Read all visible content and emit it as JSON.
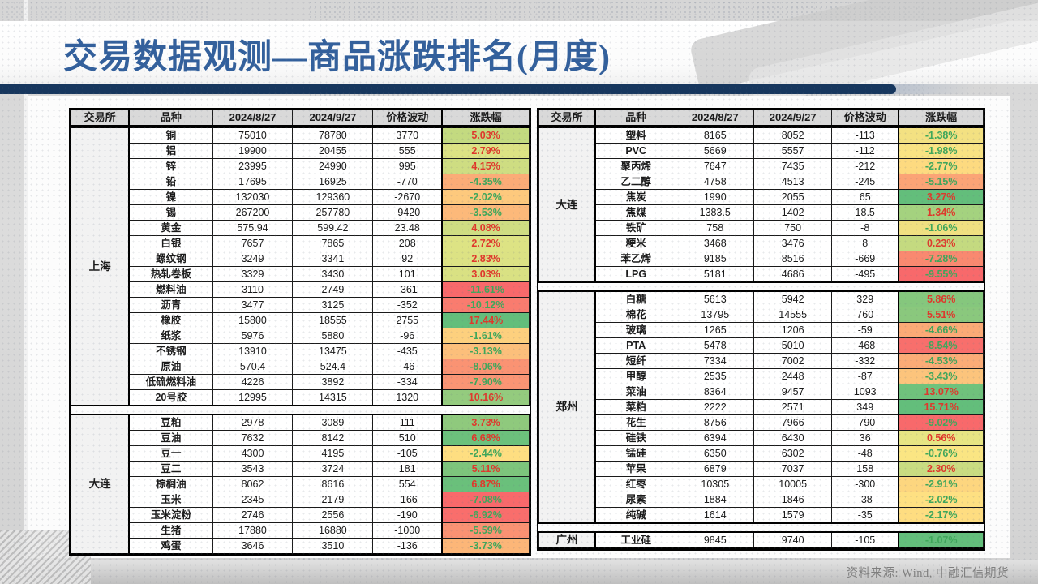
{
  "title": "交易数据观测—商品涨跌排名(月度)",
  "source_note": "资料来源: Wind, 中融汇信期货",
  "columns": [
    "交易所",
    "品种",
    "2024/8/27",
    "2024/9/27",
    "价格波动",
    "涨跌幅"
  ],
  "colors": {
    "title_text": "#33609c",
    "title_bar": "#17375e",
    "positive_text": "#df382c",
    "negative_text": "#3fa75b",
    "header_bg": "#d9d9d9",
    "exchange_bg": "#f2f2f2"
  },
  "tables": [
    {
      "name": "left",
      "blocks": [
        {
          "exchange": "上海",
          "rows": [
            {
              "name": "铜",
              "v0827": "75010",
              "v0927": "78780",
              "change": "3770",
              "pct": "5.03%",
              "pct_bg": "#c3da80"
            },
            {
              "name": "铝",
              "v0827": "19900",
              "v0927": "20455",
              "change": "555",
              "pct": "2.79%",
              "pct_bg": "#dce284"
            },
            {
              "name": "锌",
              "v0827": "23995",
              "v0927": "24990",
              "change": "995",
              "pct": "4.15%",
              "pct_bg": "#cedd82"
            },
            {
              "name": "铅",
              "v0827": "17695",
              "v0927": "16925",
              "change": "-770",
              "pct": "-4.35%",
              "pct_bg": "#fbac77"
            },
            {
              "name": "镍",
              "v0827": "132030",
              "v0927": "129360",
              "change": "-2670",
              "pct": "-2.02%",
              "pct_bg": "#fdc97d"
            },
            {
              "name": "锡",
              "v0827": "267200",
              "v0927": "257780",
              "change": "-9420",
              "pct": "-3.53%",
              "pct_bg": "#fcb97a"
            },
            {
              "name": "黄金",
              "v0827": "575.94",
              "v0927": "599.42",
              "change": "23.48",
              "pct": "4.08%",
              "pct_bg": "#cfdd82"
            },
            {
              "name": "白银",
              "v0827": "7657",
              "v0927": "7865",
              "change": "208",
              "pct": "2.72%",
              "pct_bg": "#dde384"
            },
            {
              "name": "螺纹钢",
              "v0827": "3249",
              "v0927": "3341",
              "change": "92",
              "pct": "2.83%",
              "pct_bg": "#dce284"
            },
            {
              "name": "热轧卷板",
              "v0827": "3329",
              "v0927": "3430",
              "change": "101",
              "pct": "3.03%",
              "pct_bg": "#d9e183"
            },
            {
              "name": "燃料油",
              "v0827": "3110",
              "v0927": "2749",
              "change": "-361",
              "pct": "-11.61%",
              "pct_bg": "#f8696b"
            },
            {
              "name": "沥青",
              "v0827": "3477",
              "v0927": "3125",
              "change": "-352",
              "pct": "-10.12%",
              "pct_bg": "#f97c6f"
            },
            {
              "name": "橡胶",
              "v0827": "15800",
              "v0927": "18555",
              "change": "2755",
              "pct": "17.44%",
              "pct_bg": "#63be7b"
            },
            {
              "name": "纸浆",
              "v0827": "5976",
              "v0927": "5880",
              "change": "-96",
              "pct": "-1.61%",
              "pct_bg": "#fdd07e"
            },
            {
              "name": "不锈钢",
              "v0827": "13910",
              "v0927": "13475",
              "change": "-435",
              "pct": "-3.13%",
              "pct_bg": "#fcbf7b"
            },
            {
              "name": "原油",
              "v0827": "570.4",
              "v0927": "524.4",
              "change": "-46",
              "pct": "-8.06%",
              "pct_bg": "#fa9373"
            },
            {
              "name": "低硫燃料油",
              "v0827": "4226",
              "v0927": "3892",
              "change": "-334",
              "pct": "-7.90%",
              "pct_bg": "#fa9574"
            },
            {
              "name": "20号胶",
              "v0827": "12995",
              "v0927": "14315",
              "change": "1320",
              "pct": "10.16%",
              "pct_bg": "#94cb7e"
            }
          ]
        },
        {
          "exchange": "大连",
          "rows": [
            {
              "name": "豆粕",
              "v0827": "2978",
              "v0927": "3089",
              "change": "111",
              "pct": "3.73%",
              "pct_bg": "#8fc97d"
            },
            {
              "name": "豆油",
              "v0827": "7632",
              "v0927": "8142",
              "change": "510",
              "pct": "6.68%",
              "pct_bg": "#6cc17c"
            },
            {
              "name": "豆一",
              "v0827": "4300",
              "v0927": "4195",
              "change": "-105",
              "pct": "-2.44%",
              "pct_bg": "#fede81"
            },
            {
              "name": "豆二",
              "v0827": "3543",
              "v0927": "3724",
              "change": "181",
              "pct": "5.11%",
              "pct_bg": "#7dc57c"
            },
            {
              "name": "棕榈油",
              "v0827": "8062",
              "v0927": "8616",
              "change": "554",
              "pct": "6.87%",
              "pct_bg": "#6ac07b"
            },
            {
              "name": "玉米",
              "v0827": "2345",
              "v0927": "2179",
              "change": "-166",
              "pct": "-7.08%",
              "pct_bg": "#f8696b"
            },
            {
              "name": "玉米淀粉",
              "v0827": "2746",
              "v0927": "2556",
              "change": "-190",
              "pct": "-6.92%",
              "pct_bg": "#f96e6c"
            },
            {
              "name": "生猪",
              "v0827": "17880",
              "v0927": "16880",
              "change": "-1000",
              "pct": "-5.59%",
              "pct_bg": "#fa9273"
            },
            {
              "name": "鸡蛋",
              "v0827": "3646",
              "v0927": "3510",
              "change": "-136",
              "pct": "-3.73%",
              "pct_bg": "#fcb678"
            }
          ]
        }
      ]
    },
    {
      "name": "right",
      "blocks": [
        {
          "exchange": "大连",
          "rows": [
            {
              "name": "塑料",
              "v0827": "8165",
              "v0927": "8052",
              "change": "-113",
              "pct": "-1.38%",
              "pct_bg": "#f3e182"
            },
            {
              "name": "PVC",
              "v0827": "5669",
              "v0927": "5557",
              "change": "-112",
              "pct": "-1.98%",
              "pct_bg": "#f9e383"
            },
            {
              "name": "聚丙烯",
              "v0827": "7647",
              "v0927": "7435",
              "change": "-212",
              "pct": "-2.77%",
              "pct_bg": "#fdda80"
            },
            {
              "name": "乙二醇",
              "v0827": "4758",
              "v0927": "4513",
              "change": "-245",
              "pct": "-5.15%",
              "pct_bg": "#fba476"
            },
            {
              "name": "焦炭",
              "v0827": "1990",
              "v0927": "2055",
              "change": "65",
              "pct": "3.27%",
              "pct_bg": "#63be7b"
            },
            {
              "name": "焦煤",
              "v0827": "1383.5",
              "v0927": "1402",
              "change": "18.5",
              "pct": "1.34%",
              "pct_bg": "#a4d27f"
            },
            {
              "name": "铁矿",
              "v0827": "758",
              "v0927": "750",
              "change": "-8",
              "pct": "-1.06%",
              "pct_bg": "#f0e081"
            },
            {
              "name": "粳米",
              "v0827": "3468",
              "v0927": "3476",
              "change": "8",
              "pct": "0.23%",
              "pct_bg": "#c4da80"
            },
            {
              "name": "苯乙烯",
              "v0827": "9185",
              "v0927": "8516",
              "change": "-669",
              "pct": "-7.28%",
              "pct_bg": "#f98970"
            },
            {
              "name": "LPG",
              "v0827": "5181",
              "v0927": "4686",
              "change": "-495",
              "pct": "-9.55%",
              "pct_bg": "#f8696b"
            }
          ]
        },
        {
          "exchange": "郑州",
          "rows": [
            {
              "name": "白糖",
              "v0827": "5613",
              "v0927": "5942",
              "change": "329",
              "pct": "5.86%",
              "pct_bg": "#85c77d"
            },
            {
              "name": "棉花",
              "v0827": "13795",
              "v0927": "14555",
              "change": "760",
              "pct": "5.51%",
              "pct_bg": "#8ac87d"
            },
            {
              "name": "玻璃",
              "v0827": "1265",
              "v0927": "1206",
              "change": "-59",
              "pct": "-4.66%",
              "pct_bg": "#fbaa76"
            },
            {
              "name": "PTA",
              "v0827": "5478",
              "v0927": "5010",
              "change": "-468",
              "pct": "-8.54%",
              "pct_bg": "#f86f6c"
            },
            {
              "name": "短纤",
              "v0827": "7334",
              "v0927": "7002",
              "change": "-332",
              "pct": "-4.53%",
              "pct_bg": "#fbac77"
            },
            {
              "name": "甲醇",
              "v0827": "2535",
              "v0927": "2448",
              "change": "-87",
              "pct": "-3.43%",
              "pct_bg": "#fcc47c"
            },
            {
              "name": "菜油",
              "v0827": "8364",
              "v0927": "9457",
              "change": "1093",
              "pct": "13.07%",
              "pct_bg": "#6fc27c"
            },
            {
              "name": "菜粕",
              "v0827": "2222",
              "v0927": "2571",
              "change": "349",
              "pct": "15.71%",
              "pct_bg": "#63be7b"
            },
            {
              "name": "花生",
              "v0827": "8756",
              "v0927": "7966",
              "change": "-790",
              "pct": "-9.02%",
              "pct_bg": "#f8696b"
            },
            {
              "name": "硅铁",
              "v0827": "6394",
              "v0927": "6430",
              "change": "36",
              "pct": "0.56%",
              "pct_bg": "#e7e583"
            },
            {
              "name": "锰硅",
              "v0827": "6350",
              "v0927": "6302",
              "change": "-48",
              "pct": "-0.76%",
              "pct_bg": "#fae583"
            },
            {
              "name": "苹果",
              "v0827": "6879",
              "v0927": "7037",
              "change": "158",
              "pct": "2.30%",
              "pct_bg": "#c9dc81"
            },
            {
              "name": "红枣",
              "v0827": "10305",
              "v0927": "10005",
              "change": "-300",
              "pct": "-2.91%",
              "pct_bg": "#fdd67f"
            },
            {
              "name": "尿素",
              "v0827": "1884",
              "v0927": "1846",
              "change": "-38",
              "pct": "-2.02%",
              "pct_bg": "#fee082"
            },
            {
              "name": "纯碱",
              "v0827": "1614",
              "v0927": "1579",
              "change": "-35",
              "pct": "-2.17%",
              "pct_bg": "#fedd81"
            }
          ]
        },
        {
          "exchange": "广州",
          "rows": [
            {
              "name": "工业硅",
              "v0827": "9845",
              "v0927": "9740",
              "change": "-105",
              "pct": "-1.07%",
              "pct_bg": "#63be7b"
            }
          ]
        }
      ]
    }
  ]
}
